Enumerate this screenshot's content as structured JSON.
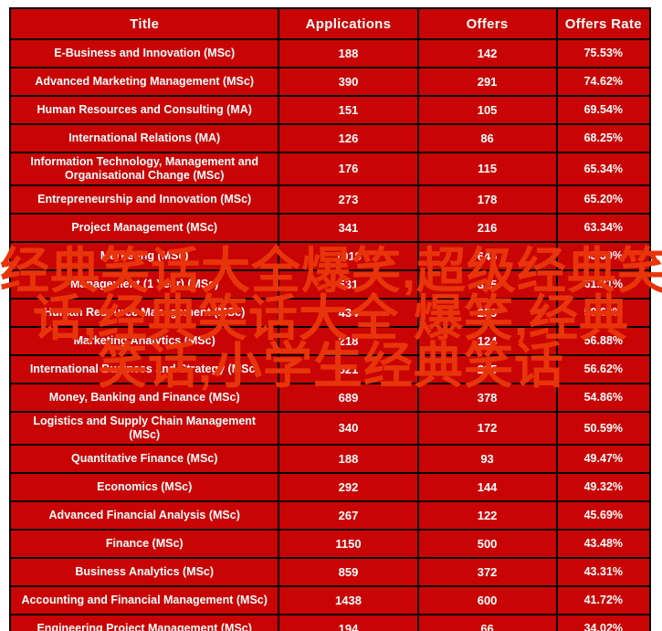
{
  "chart_data": {
    "type": "table",
    "title": "",
    "columns": [
      "Title",
      "Applications",
      "Offers",
      "Offers Rate"
    ],
    "rows": [
      [
        "E-Business and Innovation (MSc)",
        "188",
        "142",
        "75.53%"
      ],
      [
        "Advanced Marketing Management (MSc)",
        "390",
        "291",
        "74.62%"
      ],
      [
        "Human Resources and Consulting (MA)",
        "151",
        "105",
        "69.54%"
      ],
      [
        "International Relations (MA)",
        "126",
        "86",
        "68.25%"
      ],
      [
        "Information Technology, Management and Organisational Change (MSc)",
        "176",
        "115",
        "65.34%"
      ],
      [
        "Entrepreneurship and Innovation (MSc)",
        "273",
        "178",
        "65.20%"
      ],
      [
        "Project Management (MSc)",
        "341",
        "216",
        "63.34%"
      ],
      [
        "Marketing (MSc)",
        "1019",
        "645",
        "63.30%"
      ],
      [
        "Management (1 Year) (MSc)",
        "531",
        "325",
        "61.21%"
      ],
      [
        "Human Resource Management (MSc)",
        "434",
        "259",
        "59.68%"
      ],
      [
        "Marketing Analytics (MSc)",
        "218",
        "124",
        "56.88%"
      ],
      [
        "International Business and Strategy (MSc)",
        "521",
        "295",
        "56.62%"
      ],
      [
        "Money, Banking and Finance (MSc)",
        "689",
        "378",
        "54.86%"
      ],
      [
        "Logistics and Supply Chain Management (MSc)",
        "340",
        "172",
        "50.59%"
      ],
      [
        "Quantitative Finance (MSc)",
        "188",
        "93",
        "49.47%"
      ],
      [
        "Economics (MSc)",
        "292",
        "144",
        "49.32%"
      ],
      [
        "Advanced Financial Analysis (MSc)",
        "267",
        "122",
        "45.69%"
      ],
      [
        "Finance (MSc)",
        "1150",
        "500",
        "43.48%"
      ],
      [
        "Business Analytics (MSc)",
        "859",
        "372",
        "43.31%"
      ],
      [
        "Accounting and Financial Management (MSc)",
        "1438",
        "600",
        "41.72%"
      ],
      [
        "Engineering Project Management (MSc)",
        "194",
        "66",
        "34.02%"
      ]
    ]
  },
  "watermark": {
    "color": "#e8340a",
    "lines": [
      "经典笑话大全爆笑,超级经典笑",
      "话,经典笑话大全 爆笑,经典",
      "笑话,小学生经典笑话"
    ]
  },
  "colors": {
    "cell_background": "#c90404",
    "grid_lines": "#000000",
    "cell_text": "#ffffff",
    "watermark_text": "#e8340a",
    "page_background": "#ffffff"
  }
}
